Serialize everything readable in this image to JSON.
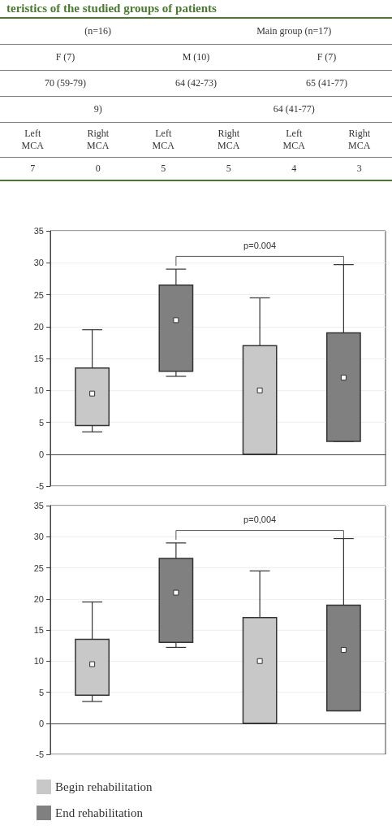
{
  "chart_data": [
    {
      "type": "other",
      "title": "teristics of the studied groups of patients",
      "annotations": [
        "(n=16)",
        "Main group (n=17)",
        "F (7)",
        "M (10)",
        "F (7)",
        "70 (59-79)",
        "64 (42-73)",
        "65 (41-77)",
        "9)",
        "64 (41-77)",
        "Left MCA",
        "Right MCA",
        "Left MCA",
        "Right MCA",
        "Left MCA",
        "Right MCA",
        "7",
        "0",
        "5",
        "5",
        "4",
        "3"
      ]
    },
    {
      "type": "box",
      "categories": [
        null,
        null,
        null,
        null
      ],
      "ylim": [
        -5,
        35
      ],
      "yticks": [
        -5,
        0,
        5,
        10,
        15,
        20,
        25,
        30,
        35
      ],
      "grid": "y",
      "marker": "square",
      "legend": false,
      "annotations": [
        "p=0.004"
      ],
      "series": [
        {
          "color": "#c8c8c8",
          "boxes": [
            {
              "low": 3.5,
              "q1": 4.5,
              "median": 9.5,
              "q3": 13.5,
              "high": 19.5
            },
            null,
            {
              "low": 0,
              "q1": 0,
              "median": 10,
              "q3": 17,
              "high": 24.5
            },
            null
          ]
        },
        {
          "color": "#808080",
          "boxes": [
            null,
            {
              "low": 12.2,
              "q1": 13,
              "median": 21,
              "q3": 26.5,
              "high": 29
            },
            null,
            {
              "low": 2,
              "q1": 2,
              "median": 12,
              "q3": 19,
              "high": 29.7
            }
          ]
        }
      ]
    },
    {
      "type": "box",
      "categories": [
        null,
        null,
        null,
        null
      ],
      "ylim": [
        -5,
        35
      ],
      "yticks": [
        -5,
        0,
        5,
        10,
        15,
        20,
        25,
        30,
        35
      ],
      "grid": "y",
      "marker": "square",
      "legend": "bottom left",
      "annotations": [
        "p=0,004"
      ],
      "series": [
        {
          "name": "Begin rehabilitation",
          "color": "#c8c8c8",
          "boxes": [
            {
              "low": 3.5,
              "q1": 4.5,
              "median": 9.5,
              "q3": 13.5,
              "high": 19.5
            },
            null,
            {
              "low": 0,
              "q1": 0,
              "median": 10,
              "q3": 17,
              "high": 24.5
            },
            null
          ]
        },
        {
          "name": "End rehabilitation",
          "color": "#808080",
          "boxes": [
            null,
            {
              "low": 12.2,
              "q1": 13,
              "median": 21,
              "q3": 26.5,
              "high": 29
            },
            null,
            {
              "low": 2,
              "q1": 2,
              "median": 11.8,
              "q3": 19,
              "high": 29.7
            }
          ]
        }
      ]
    }
  ]
}
